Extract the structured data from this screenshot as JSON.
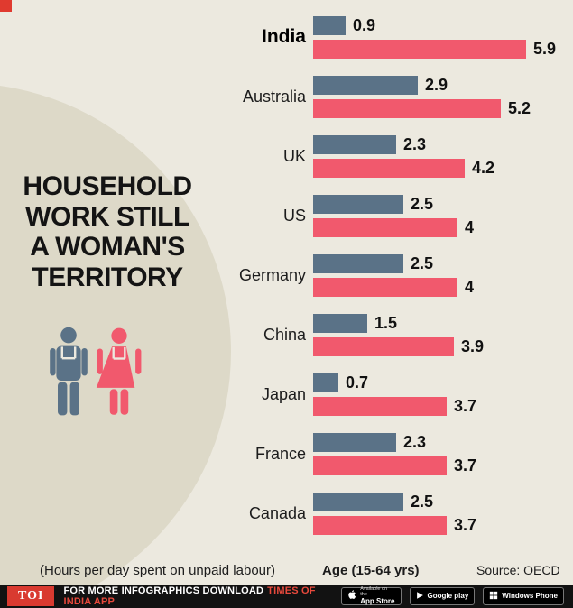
{
  "page": {
    "title_lines": [
      "HOUSEHOLD",
      "WORK STILL",
      "A WOMAN'S",
      "TERRITORY"
    ]
  },
  "chart_data": {
    "type": "bar",
    "orientation": "horizontal",
    "title": "HOUSEHOLD WORK STILL A WOMAN'S TERRITORY",
    "categories": [
      "India",
      "Australia",
      "UK",
      "US",
      "Germany",
      "China",
      "Japan",
      "France",
      "Canada"
    ],
    "series": [
      {
        "name": "Men",
        "color": "#5a7287",
        "values": [
          0.9,
          2.9,
          2.3,
          2.5,
          2.5,
          1.5,
          0.7,
          2.3,
          2.5
        ]
      },
      {
        "name": "Women",
        "color": "#f1596d",
        "values": [
          5.9,
          5.2,
          4.2,
          4,
          4,
          3.9,
          3.7,
          3.7,
          3.7
        ]
      }
    ],
    "xlim": [
      0,
      6
    ],
    "units": "hours per day",
    "note": "(Hours per day spent on unpaid labour)",
    "age_label": "Age (15-64 yrs)",
    "source": "Source: OECD",
    "legend_position": "none",
    "grid": false
  },
  "footer": {
    "note": "(Hours per day spent on unpaid labour)",
    "age": "Age (15-64 yrs)",
    "source": "Source: OECD"
  },
  "bottombar": {
    "toi": "TOI",
    "text_white": "FOR MORE  INFOGRAPHICS DOWNLOAD",
    "text_red": "TIMES OF INDIA APP",
    "badges": [
      {
        "id": "app-store",
        "line1": "Available on the",
        "line2": "App Store"
      },
      {
        "id": "google-play",
        "line1": "",
        "line2": "Google play"
      },
      {
        "id": "windows-phone",
        "line1": "",
        "line2": "Windows Phone"
      }
    ]
  },
  "colors": {
    "background": "#ece9df",
    "circle": "#ddd9c8",
    "men_bar": "#5a7287",
    "women_bar": "#f1596d",
    "accent_red": "#e03a2f",
    "bottom_bar": "#121212"
  }
}
